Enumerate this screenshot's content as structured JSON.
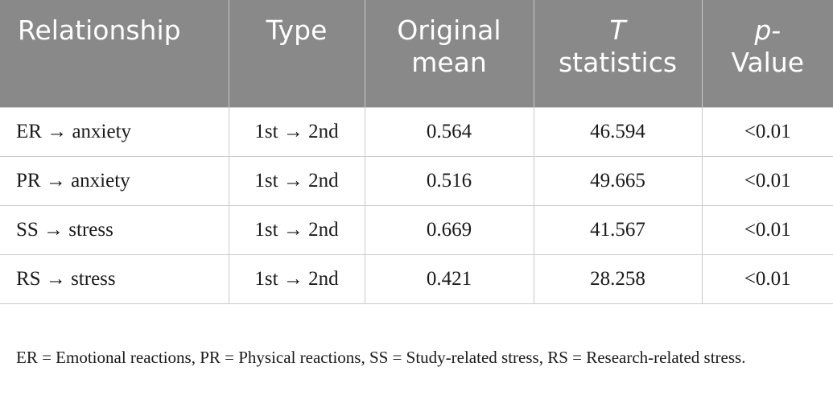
{
  "table": {
    "headers": {
      "relationship": "Relationship",
      "type": "Type",
      "original_mean_line1": "Original",
      "original_mean_line2": "mean",
      "t_stat_line1": "T",
      "t_stat_line2": "statistics",
      "p_value_line1": "p-",
      "p_value_line2": "Value"
    },
    "rows": [
      {
        "relationship": "ER → anxiety",
        "type": "1st → 2nd",
        "original_mean": "0.564",
        "t_statistics": "46.594",
        "p_value": "<0.01"
      },
      {
        "relationship": "PR → anxiety",
        "type": "1st → 2nd",
        "original_mean": "0.516",
        "t_statistics": "49.665",
        "p_value": "<0.01"
      },
      {
        "relationship": "SS → stress",
        "type": "1st → 2nd",
        "original_mean": "0.669",
        "t_statistics": "41.567",
        "p_value": "<0.01"
      },
      {
        "relationship": "RS → stress",
        "type": "1st → 2nd",
        "original_mean": "0.421",
        "t_statistics": "28.258",
        "p_value": "<0.01"
      }
    ]
  },
  "footnote": "ER = Emotional reactions, PR = Physical reactions, SS = Study-related stress, RS = Research-related stress.",
  "colors": {
    "header_background": "#898989",
    "header_text": "#ffffff",
    "grid_lines": "#c9c9c9",
    "body_text": "#1a1a1a"
  }
}
